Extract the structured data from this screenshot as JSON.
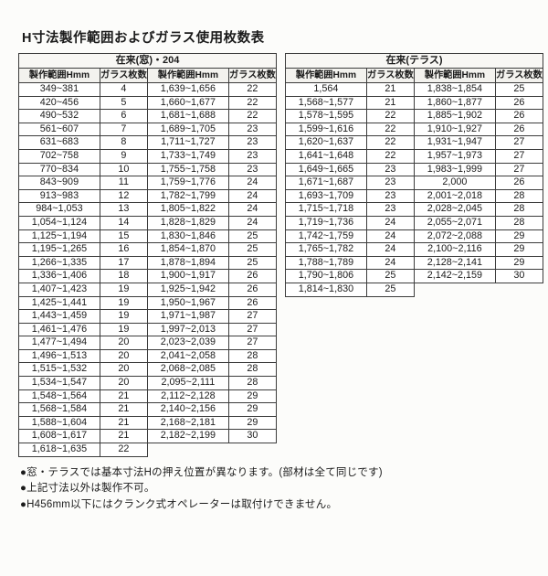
{
  "title": "H寸法製作範囲およびガラス使用枚数表",
  "tables": [
    {
      "caption": "在来(窓)・204",
      "columns": [
        "製作範囲Hmm",
        "ガラス枚数",
        "製作範囲Hmm",
        "ガラス枚数"
      ],
      "rows": [
        [
          "349~381",
          "4",
          "1,639~1,656",
          "22"
        ],
        [
          "420~456",
          "5",
          "1,660~1,677",
          "22"
        ],
        [
          "490~532",
          "6",
          "1,681~1,688",
          "22"
        ],
        [
          "561~607",
          "7",
          "1,689~1,705",
          "23"
        ],
        [
          "631~683",
          "8",
          "1,711~1,727",
          "23"
        ],
        [
          "702~758",
          "9",
          "1,733~1,749",
          "23"
        ],
        [
          "770~834",
          "10",
          "1,755~1,758",
          "23"
        ],
        [
          "843~909",
          "11",
          "1,759~1,776",
          "24"
        ],
        [
          "913~983",
          "12",
          "1,782~1,799",
          "24"
        ],
        [
          "984~1,053",
          "13",
          "1,805~1,822",
          "24"
        ],
        [
          "1,054~1,124",
          "14",
          "1,828~1,829",
          "24"
        ],
        [
          "1,125~1,194",
          "15",
          "1,830~1,846",
          "25"
        ],
        [
          "1,195~1,265",
          "16",
          "1,854~1,870",
          "25"
        ],
        [
          "1,266~1,335",
          "17",
          "1,878~1,894",
          "25"
        ],
        [
          "1,336~1,406",
          "18",
          "1,900~1,917",
          "26"
        ],
        [
          "1,407~1,423",
          "19",
          "1,925~1,942",
          "26"
        ],
        [
          "1,425~1,441",
          "19",
          "1,950~1,967",
          "26"
        ],
        [
          "1,443~1,459",
          "19",
          "1,971~1,987",
          "27"
        ],
        [
          "1,461~1,476",
          "19",
          "1,997~2,013",
          "27"
        ],
        [
          "1,477~1,494",
          "20",
          "2,023~2,039",
          "27"
        ],
        [
          "1,496~1,513",
          "20",
          "2,041~2,058",
          "28"
        ],
        [
          "1,515~1,532",
          "20",
          "2,068~2,085",
          "28"
        ],
        [
          "1,534~1,547",
          "20",
          "2,095~2,111",
          "28"
        ],
        [
          "1,548~1,564",
          "21",
          "2,112~2,128",
          "29"
        ],
        [
          "1,568~1,584",
          "21",
          "2,140~2,156",
          "29"
        ],
        [
          "1,588~1,604",
          "21",
          "2,168~2,181",
          "29"
        ],
        [
          "1,608~1,617",
          "21",
          "2,182~2,199",
          "30"
        ],
        [
          "1,618~1,635",
          "22",
          null,
          null
        ]
      ]
    },
    {
      "caption": "在来(テラス)",
      "columns": [
        "製作範囲Hmm",
        "ガラス枚数",
        "製作範囲Hmm",
        "ガラス枚数"
      ],
      "rows": [
        [
          "1,564",
          "21",
          "1,838~1,854",
          "25"
        ],
        [
          "1,568~1,577",
          "21",
          "1,860~1,877",
          "26"
        ],
        [
          "1,578~1,595",
          "22",
          "1,885~1,902",
          "26"
        ],
        [
          "1,599~1,616",
          "22",
          "1,910~1,927",
          "26"
        ],
        [
          "1,620~1,637",
          "22",
          "1,931~1,947",
          "27"
        ],
        [
          "1,641~1,648",
          "22",
          "1,957~1,973",
          "27"
        ],
        [
          "1,649~1,665",
          "23",
          "1,983~1,999",
          "27"
        ],
        [
          "1,671~1,687",
          "23",
          "2,000",
          "26"
        ],
        [
          "1,693~1,709",
          "23",
          "2,001~2,018",
          "28"
        ],
        [
          "1,715~1,718",
          "23",
          "2,028~2,045",
          "28"
        ],
        [
          "1,719~1,736",
          "24",
          "2,055~2,071",
          "28"
        ],
        [
          "1,742~1,759",
          "24",
          "2,072~2,088",
          "29"
        ],
        [
          "1,765~1,782",
          "24",
          "2,100~2,116",
          "29"
        ],
        [
          "1,788~1,789",
          "24",
          "2,128~2,141",
          "29"
        ],
        [
          "1,790~1,806",
          "25",
          "2,142~2,159",
          "30"
        ],
        [
          "1,814~1,830",
          "25",
          null,
          null
        ]
      ]
    }
  ],
  "notes": [
    "●窓・テラスでは基本寸法Hの押え位置が異なります。(部材は全て同じです)",
    "●上記寸法以外は製作不可。",
    "●H456mm以下にはクランク式オペレーターは取付けできません。"
  ]
}
